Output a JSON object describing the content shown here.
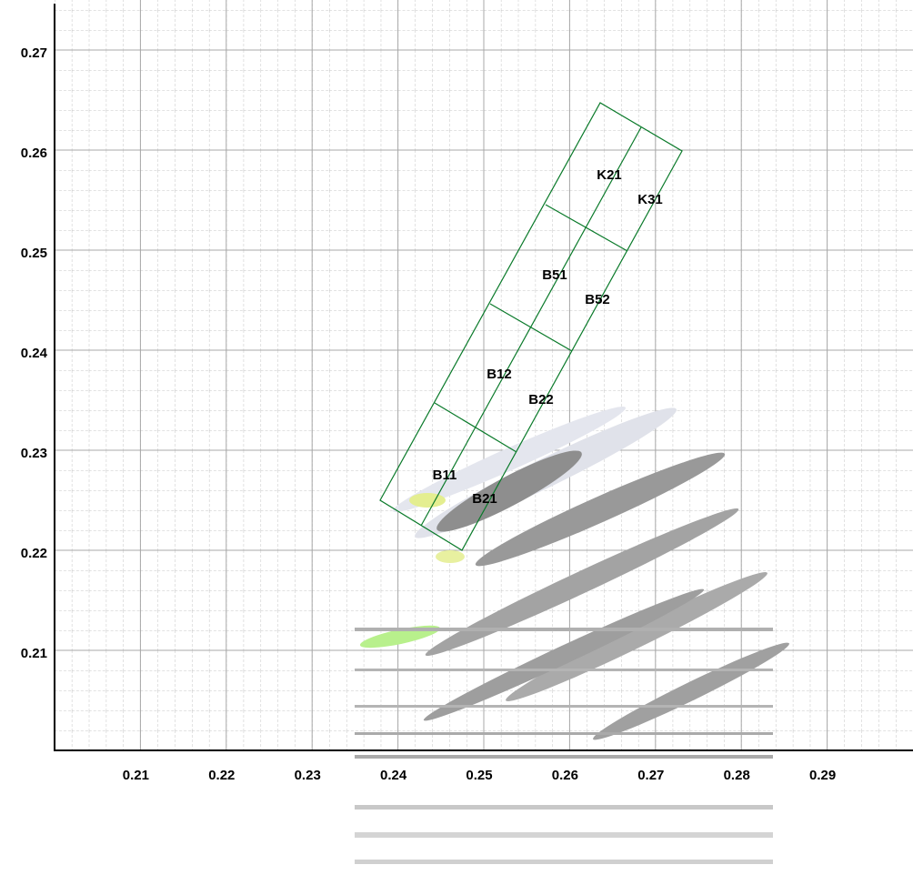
{
  "chart_data": {
    "type": "scatter",
    "xlim": [
      0.2,
      0.3
    ],
    "ylim": [
      0.2,
      0.275
    ],
    "xticks": [
      0.21,
      0.22,
      0.23,
      0.24,
      0.25,
      0.26,
      0.27,
      0.28,
      0.29
    ],
    "yticks": [
      0.21,
      0.22,
      0.23,
      0.24,
      0.25,
      0.26,
      0.27
    ],
    "grid": true,
    "annotations": [
      "K21",
      "K31",
      "B51",
      "B52",
      "B12",
      "B22",
      "B11",
      "B21"
    ]
  }
}
